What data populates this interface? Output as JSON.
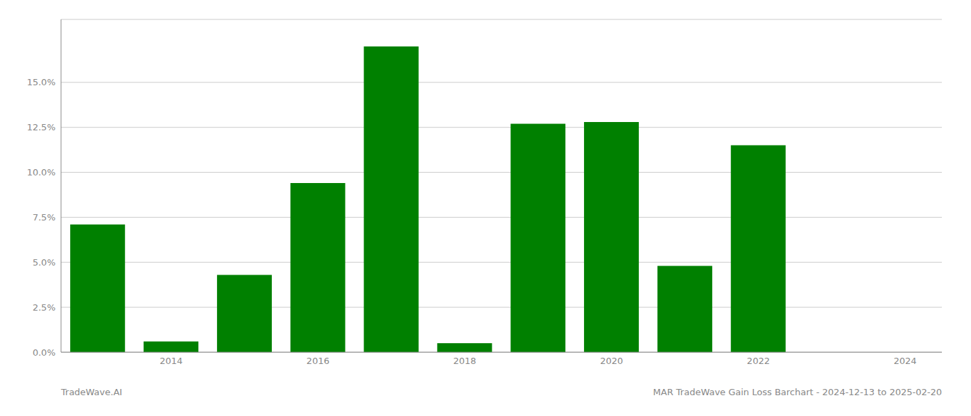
{
  "chart_data": {
    "type": "bar",
    "categories": [
      null,
      "2014",
      null,
      "2016",
      null,
      "2018",
      null,
      "2020",
      null,
      "2022",
      null,
      "2024"
    ],
    "values": [
      0.071,
      0.006,
      0.043,
      0.094,
      0.17,
      0.005,
      0.127,
      0.128,
      0.048,
      0.115,
      0.0,
      0.0
    ],
    "color": "#008000",
    "ylim": [
      0.0,
      0.185
    ],
    "yticks": [
      {
        "value": 0.0,
        "label": "0.0%"
      },
      {
        "value": 0.025,
        "label": "2.5%"
      },
      {
        "value": 0.05,
        "label": "5.0%"
      },
      {
        "value": 0.075,
        "label": "7.5%"
      },
      {
        "value": 0.1,
        "label": "10.0%"
      },
      {
        "value": 0.125,
        "label": "12.5%"
      },
      {
        "value": 0.15,
        "label": "15.0%"
      }
    ],
    "grid": true,
    "annotations": [
      "TradeWave.AI",
      "MAR TradeWave Gain Loss Barchart - 2024-12-13 to 2025-02-20"
    ]
  }
}
